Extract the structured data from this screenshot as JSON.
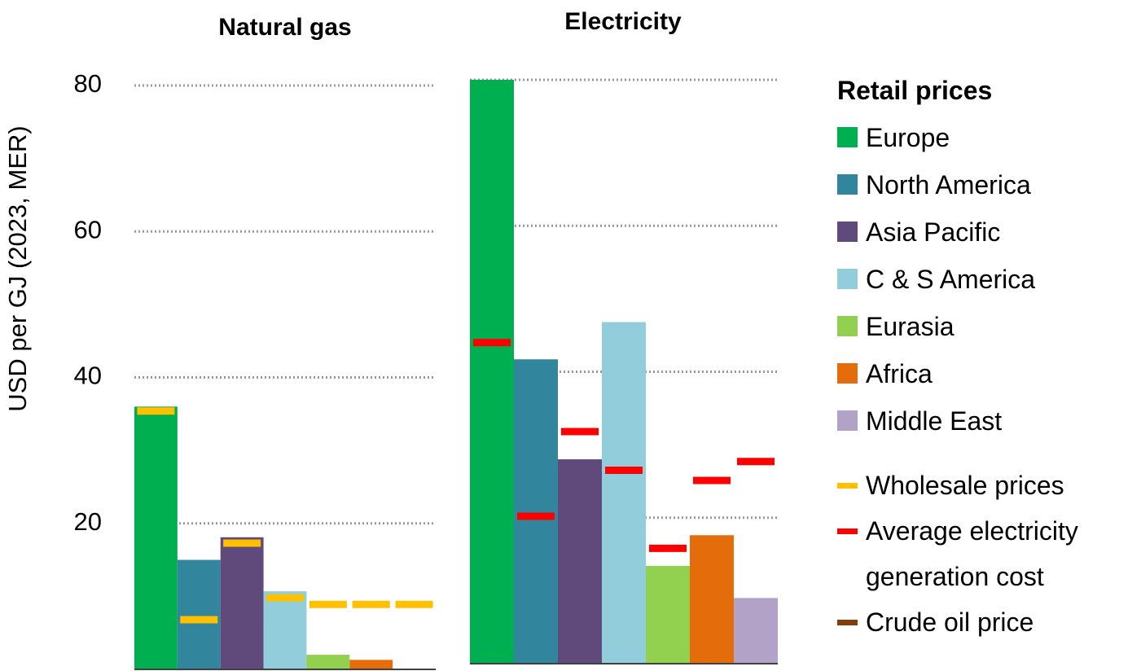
{
  "chart_data": [
    {
      "type": "bar",
      "title": "Natural gas",
      "ylabel": "USD per GJ (2023, MER)",
      "ylim": [
        0,
        80
      ],
      "yticks": [
        20,
        40,
        60,
        80
      ],
      "grid": true,
      "values": [
        36.0,
        15.0,
        18.1,
        10.7,
        2.0,
        1.3,
        null
      ],
      "colors": [
        "#00b050",
        "#31859c",
        "#604a7b",
        "#92cddc",
        "#92d050",
        "#e46c0a",
        "#b3a2c7"
      ],
      "marker_values": [
        35.4,
        6.8,
        17.3,
        9.8,
        8.9,
        8.9,
        8.9
      ],
      "marker_color": "#ffc000"
    },
    {
      "type": "bar",
      "title": "Electricity",
      "ylim": [
        0,
        80
      ],
      "yticks": [
        20,
        40,
        60,
        80
      ],
      "grid": true,
      "values": [
        80.0,
        41.7,
        28.0,
        46.8,
        13.4,
        17.6,
        9.0
      ],
      "colors": [
        "#00b050",
        "#31859c",
        "#604a7b",
        "#92cddc",
        "#92d050",
        "#e46c0a",
        "#b3a2c7"
      ],
      "marker_values": [
        44.0,
        20.2,
        31.8,
        26.5,
        15.8,
        25.1,
        27.7
      ],
      "marker_color": "#ff0000"
    }
  ],
  "legend": {
    "title": "Retail prices",
    "regions": [
      {
        "name": "Europe",
        "color": "#00b050"
      },
      {
        "name": "North America",
        "color": "#31859c"
      },
      {
        "name": "Asia Pacific",
        "color": "#604a7b"
      },
      {
        "name": "C & S America",
        "color": "#92cddc"
      },
      {
        "name": "Eurasia",
        "color": "#92d050"
      },
      {
        "name": "Africa",
        "color": "#e46c0a"
      },
      {
        "name": "Middle East",
        "color": "#b3a2c7"
      }
    ],
    "markers": [
      {
        "name": "Wholesale prices",
        "color": "#ffc000"
      },
      {
        "name": "Average electricity generation cost",
        "color": "#ff0000"
      },
      {
        "name": "Crude oil price",
        "color": "#843c0c"
      }
    ]
  }
}
